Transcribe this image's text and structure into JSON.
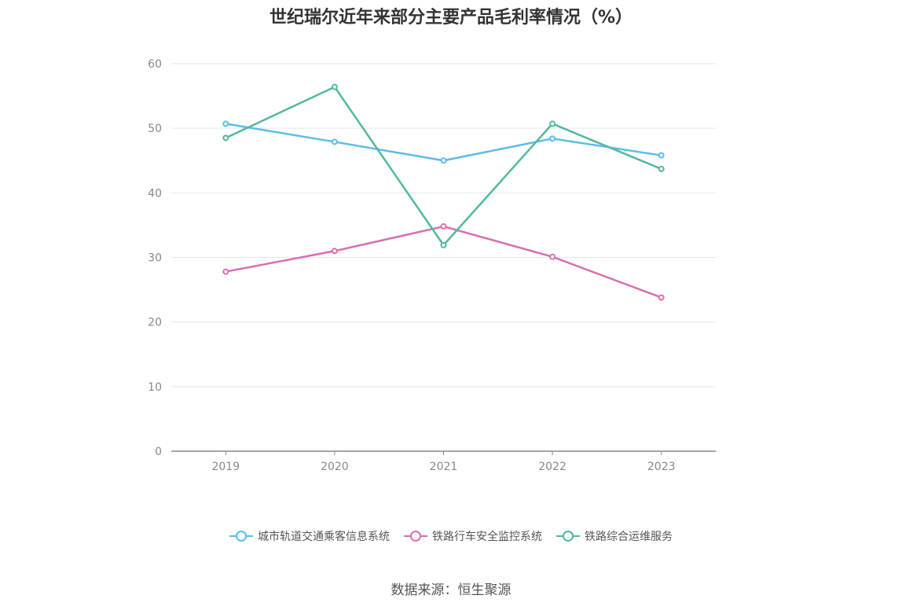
{
  "chart_data": {
    "type": "line",
    "title": "世纪瑞尔近年来部分主要产品毛利率情况（%）",
    "categories": [
      "2019",
      "2020",
      "2021",
      "2022",
      "2023"
    ],
    "ylim": [
      0,
      60
    ],
    "yticks": [
      "0",
      "10",
      "20",
      "30",
      "40",
      "50",
      "60"
    ],
    "grid": true,
    "legend_position": "bottom",
    "series": [
      {
        "name": "城市轨道交通乘客信息系统",
        "color": "#5bbcec",
        "values": [
          50.7,
          47.9,
          45.0,
          48.4,
          45.8
        ]
      },
      {
        "name": "铁路行车安全监控系统",
        "color": "#d96eb0",
        "values": [
          27.8,
          31.0,
          34.8,
          30.1,
          23.8
        ]
      },
      {
        "name": "铁路综合运维服务",
        "color": "#52b89e",
        "values": [
          48.5,
          56.4,
          31.9,
          50.7,
          43.7
        ]
      }
    ]
  },
  "source_note": "数据来源：恒生聚源"
}
